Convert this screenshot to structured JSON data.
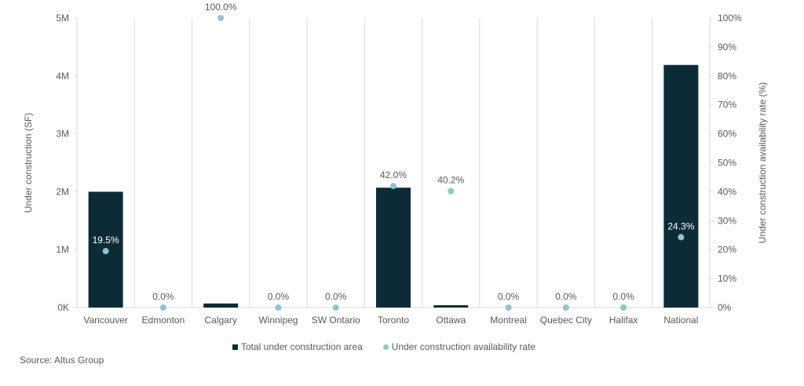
{
  "chart_data": {
    "type": "bar+scatter",
    "categories": [
      "Vancouver",
      "Edmonton",
      "Calgary",
      "Winnipeg",
      "SW Ontario",
      "Toronto",
      "Ottawa",
      "Montreal",
      "Quebec City",
      "Halifax",
      "National"
    ],
    "series": [
      {
        "name": "Total under construction area",
        "type": "bar",
        "axis": "left",
        "color": "#0d2b36",
        "values": [
          2000000,
          0,
          70000,
          0,
          0,
          2070000,
          40000,
          0,
          0,
          0,
          4190000
        ]
      },
      {
        "name": "Under construction availability rate",
        "type": "scatter",
        "axis": "right",
        "color": "#8ec5cf",
        "values": [
          19.5,
          0.0,
          100.0,
          0.0,
          0.0,
          42.0,
          40.2,
          0.0,
          0.0,
          0.0,
          24.3
        ],
        "labels": [
          "19.5%",
          "0.0%",
          "100.0%",
          "0.0%",
          "0.0%",
          "42.0%",
          "40.2%",
          "0.0%",
          "0.0%",
          "0.0%",
          "24.3%"
        ]
      }
    ],
    "ylabel": "Under construction (SF)",
    "y2label": "Under construction availability rate (%)",
    "ylim": [
      0,
      5000000
    ],
    "y2lim": [
      0,
      100
    ],
    "yticks": [
      "0K",
      "1M",
      "2M",
      "3M",
      "4M",
      "5M"
    ],
    "y2ticks": [
      "0%",
      "10%",
      "20%",
      "30%",
      "40%",
      "50%",
      "60%",
      "70%",
      "80%",
      "90%",
      "100%"
    ],
    "grid": "vertical category separators",
    "legend_position": "bottom"
  },
  "legend": {
    "bar_label": "Total under construction area",
    "dot_label": "Under construction availability rate"
  },
  "source": "Source:  Altus Group"
}
